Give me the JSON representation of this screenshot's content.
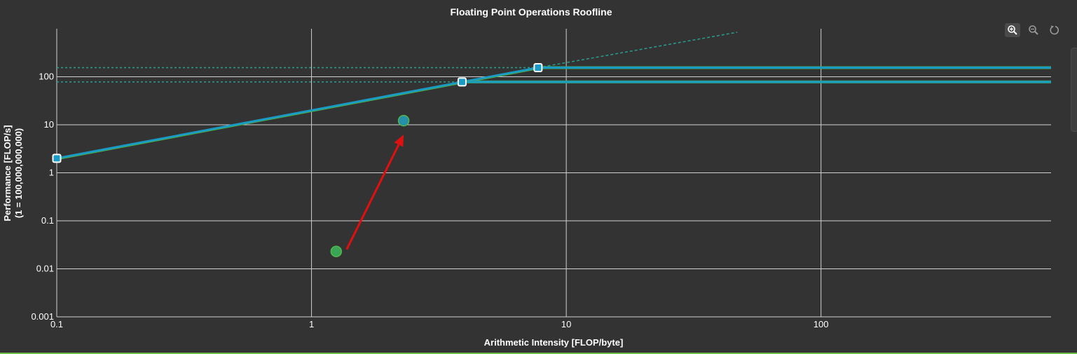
{
  "chart_data": {
    "type": "scatter",
    "title": "Floating Point Operations Roofline",
    "xlabel": "Arithmetic Intensity [FLOP/byte]",
    "ylabel_line1": "Performance [FLOP/s]",
    "ylabel_line2": "(1 = 100,000,000,000)",
    "x_scale": "log",
    "y_scale": "log",
    "xlim": [
      0.1,
      800
    ],
    "ylim": [
      0.001,
      1000
    ],
    "x_ticks": [
      0.1,
      1,
      10,
      100
    ],
    "x_tick_labels": [
      "0.1",
      "1",
      "10",
      "100"
    ],
    "y_ticks": [
      0.001,
      0.01,
      0.1,
      1,
      10,
      100
    ],
    "y_tick_labels": [
      "0.001",
      "0.01",
      "0.1",
      "1",
      "10",
      "100"
    ],
    "grid": true,
    "colors": {
      "roof": "#1a9bc5",
      "roof_green": "#47b04b",
      "ceiling_dotted": "#2a9d8f",
      "point_before": "#3aa655",
      "point_after": "#2590a8",
      "arrow": "#e01010",
      "grid": "#d0d0d0"
    },
    "memory_bandwidth_gb_per_s": 20,
    "roofs": [
      {
        "peak": 155,
        "ridge_x": 7.75
      },
      {
        "peak": 78,
        "ridge_x": 3.9
      }
    ],
    "points": [
      {
        "x": 1.25,
        "y": 0.023,
        "role": "before"
      },
      {
        "x": 2.3,
        "y": 12.2,
        "role": "after"
      }
    ]
  },
  "toolbar": {
    "zoom_in_icon": "zoom-in-icon",
    "zoom_out_icon": "zoom-out-icon",
    "reset_icon": "reset-icon"
  }
}
